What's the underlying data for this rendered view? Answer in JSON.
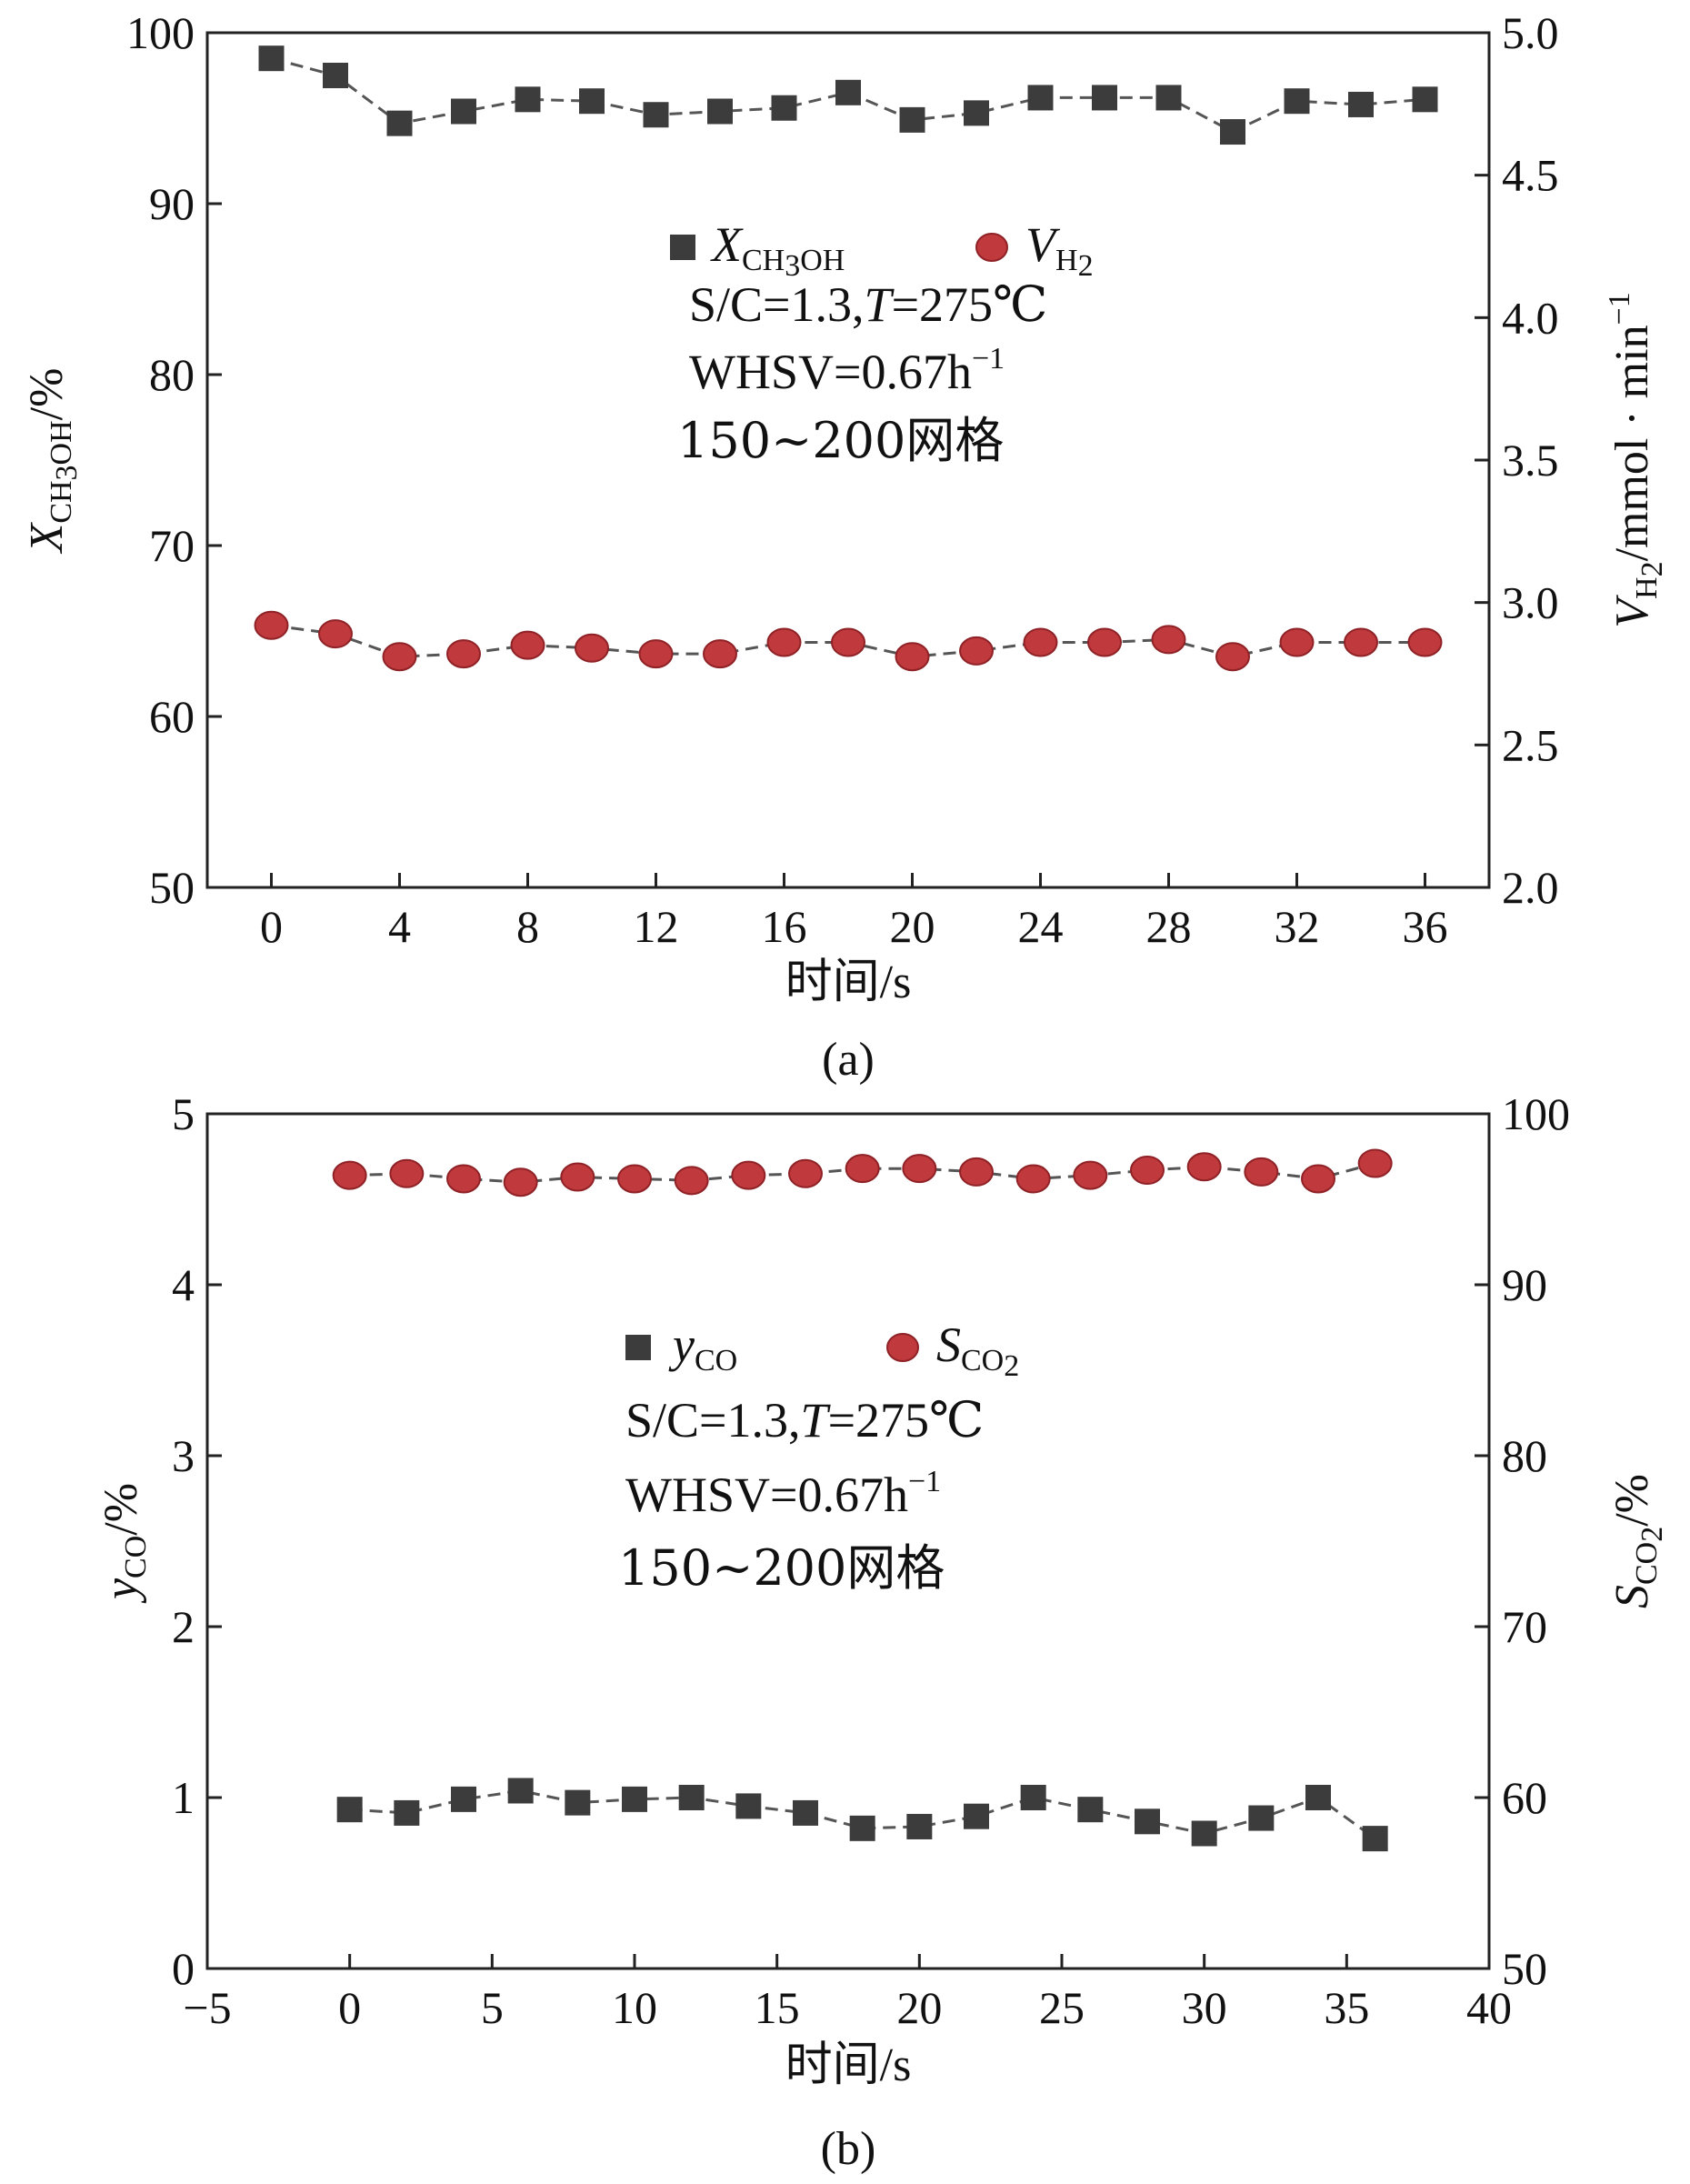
{
  "colors": {
    "square_series": "#3c3c3c",
    "circle_series": "#c0393d",
    "circle_edge": "#8e2226",
    "line": "#555555",
    "axis": "#222222"
  },
  "chart_data": [
    {
      "type": "line",
      "panel_label": "(a)",
      "xlabel": "时间/s",
      "xlim": [
        -2,
        38
      ],
      "xticks": [
        0,
        4,
        8,
        12,
        16,
        20,
        24,
        28,
        32,
        36
      ],
      "xtick_labels": [
        "0",
        "4",
        "8",
        "12",
        "16",
        "20",
        "24",
        "28",
        "32",
        "36"
      ],
      "ylim_left": [
        50,
        100
      ],
      "yticks_left": [
        50,
        60,
        70,
        80,
        90,
        100
      ],
      "ytick_labels_left": [
        "50",
        "60",
        "70",
        "80",
        "90",
        "100"
      ],
      "ylabel_left": {
        "var": "X",
        "sub": "CH",
        "sub2": "3",
        "sub3": "OH",
        "unit": "/%"
      },
      "ylim_right": [
        2.0,
        5.0
      ],
      "yticks_right": [
        2.0,
        2.5,
        3.0,
        3.5,
        4.0,
        4.5,
        5.0
      ],
      "ytick_labels_right": [
        "2.0",
        "2.5",
        "3.0",
        "3.5",
        "4.0",
        "4.5",
        "5.0"
      ],
      "ylabel_right": {
        "var": "V",
        "sub": "H",
        "sub2": "2",
        "unit": "/mmol · min",
        "sup": "−1"
      },
      "x": [
        0,
        2,
        4,
        6,
        8,
        10,
        12,
        14,
        16,
        18,
        20,
        22,
        24,
        26,
        28,
        30,
        32,
        34,
        36
      ],
      "series": [
        {
          "name": "X_CH3OH",
          "marker": "square",
          "axis": "left",
          "values": [
            98.5,
            97.5,
            94.7,
            95.4,
            96.1,
            96.0,
            95.2,
            95.4,
            95.6,
            96.5,
            94.9,
            95.3,
            96.2,
            96.2,
            96.2,
            94.2,
            96.0,
            95.8,
            96.1
          ]
        },
        {
          "name": "V_H2",
          "marker": "circle",
          "axis": "right",
          "values": [
            2.92,
            2.89,
            2.81,
            2.82,
            2.85,
            2.84,
            2.82,
            2.82,
            2.86,
            2.86,
            2.81,
            2.83,
            2.86,
            2.86,
            2.87,
            2.81,
            2.86,
            2.86,
            2.86
          ]
        }
      ],
      "legend": [
        {
          "var": "X",
          "sub": "CH",
          "sub2": "3",
          "sub3": "OH"
        },
        {
          "var": "V",
          "sub": "H",
          "sub2": "2"
        }
      ],
      "conditions": {
        "sc": "S/C=1.3,",
        "t_var": "T",
        "t_val": "=275℃",
        "whsv": "WHSV=0.67h",
        "whsv_sup": "−1",
        "mesh": "150~200网格"
      }
    },
    {
      "type": "line",
      "panel_label": "(b)",
      "xlabel": "时间/s",
      "xlim": [
        -5,
        40
      ],
      "xticks": [
        -5,
        0,
        5,
        10,
        15,
        20,
        25,
        30,
        35,
        40
      ],
      "xtick_labels": [
        "−5",
        "0",
        "5",
        "10",
        "15",
        "20",
        "25",
        "30",
        "35",
        "40"
      ],
      "ylim_left": [
        0,
        5
      ],
      "yticks_left": [
        0,
        1,
        2,
        3,
        4,
        5
      ],
      "ytick_labels_left": [
        "0",
        "1",
        "2",
        "3",
        "4",
        "5"
      ],
      "ylabel_left": {
        "var": "y",
        "sub": "CO",
        "unit": "/%"
      },
      "ylim_right": [
        50,
        100
      ],
      "yticks_right": [
        50,
        60,
        70,
        80,
        90,
        100
      ],
      "ytick_labels_right": [
        "50",
        "60",
        "70",
        "80",
        "90",
        "100"
      ],
      "ylabel_right": {
        "var": "S",
        "sub": "CO",
        "sub2": "2",
        "unit": "/%"
      },
      "x": [
        0,
        2,
        4,
        6,
        8,
        10,
        12,
        14,
        16,
        18,
        20,
        22,
        24,
        26,
        28,
        30,
        32,
        34,
        36
      ],
      "series": [
        {
          "name": "y_CO",
          "marker": "square",
          "axis": "left",
          "values": [
            0.93,
            0.91,
            0.99,
            1.04,
            0.97,
            0.99,
            1.0,
            0.95,
            0.91,
            0.82,
            0.83,
            0.89,
            1.0,
            0.93,
            0.86,
            0.79,
            0.88,
            1.0,
            0.76
          ]
        },
        {
          "name": "S_CO2",
          "marker": "circle",
          "axis": "right",
          "values": [
            96.4,
            96.5,
            96.2,
            96.0,
            96.3,
            96.2,
            96.1,
            96.4,
            96.5,
            96.8,
            96.8,
            96.6,
            96.2,
            96.4,
            96.7,
            96.9,
            96.6,
            96.2,
            97.1
          ]
        }
      ],
      "legend": [
        {
          "var": "y",
          "sub": "CO"
        },
        {
          "var": "S",
          "sub": "CO",
          "sub2": "2"
        }
      ],
      "conditions": {
        "sc": "S/C=1.3,",
        "t_var": "T",
        "t_val": "=275℃",
        "whsv": "WHSV=0.67h",
        "whsv_sup": "−1",
        "mesh": "150~200网格"
      }
    }
  ]
}
